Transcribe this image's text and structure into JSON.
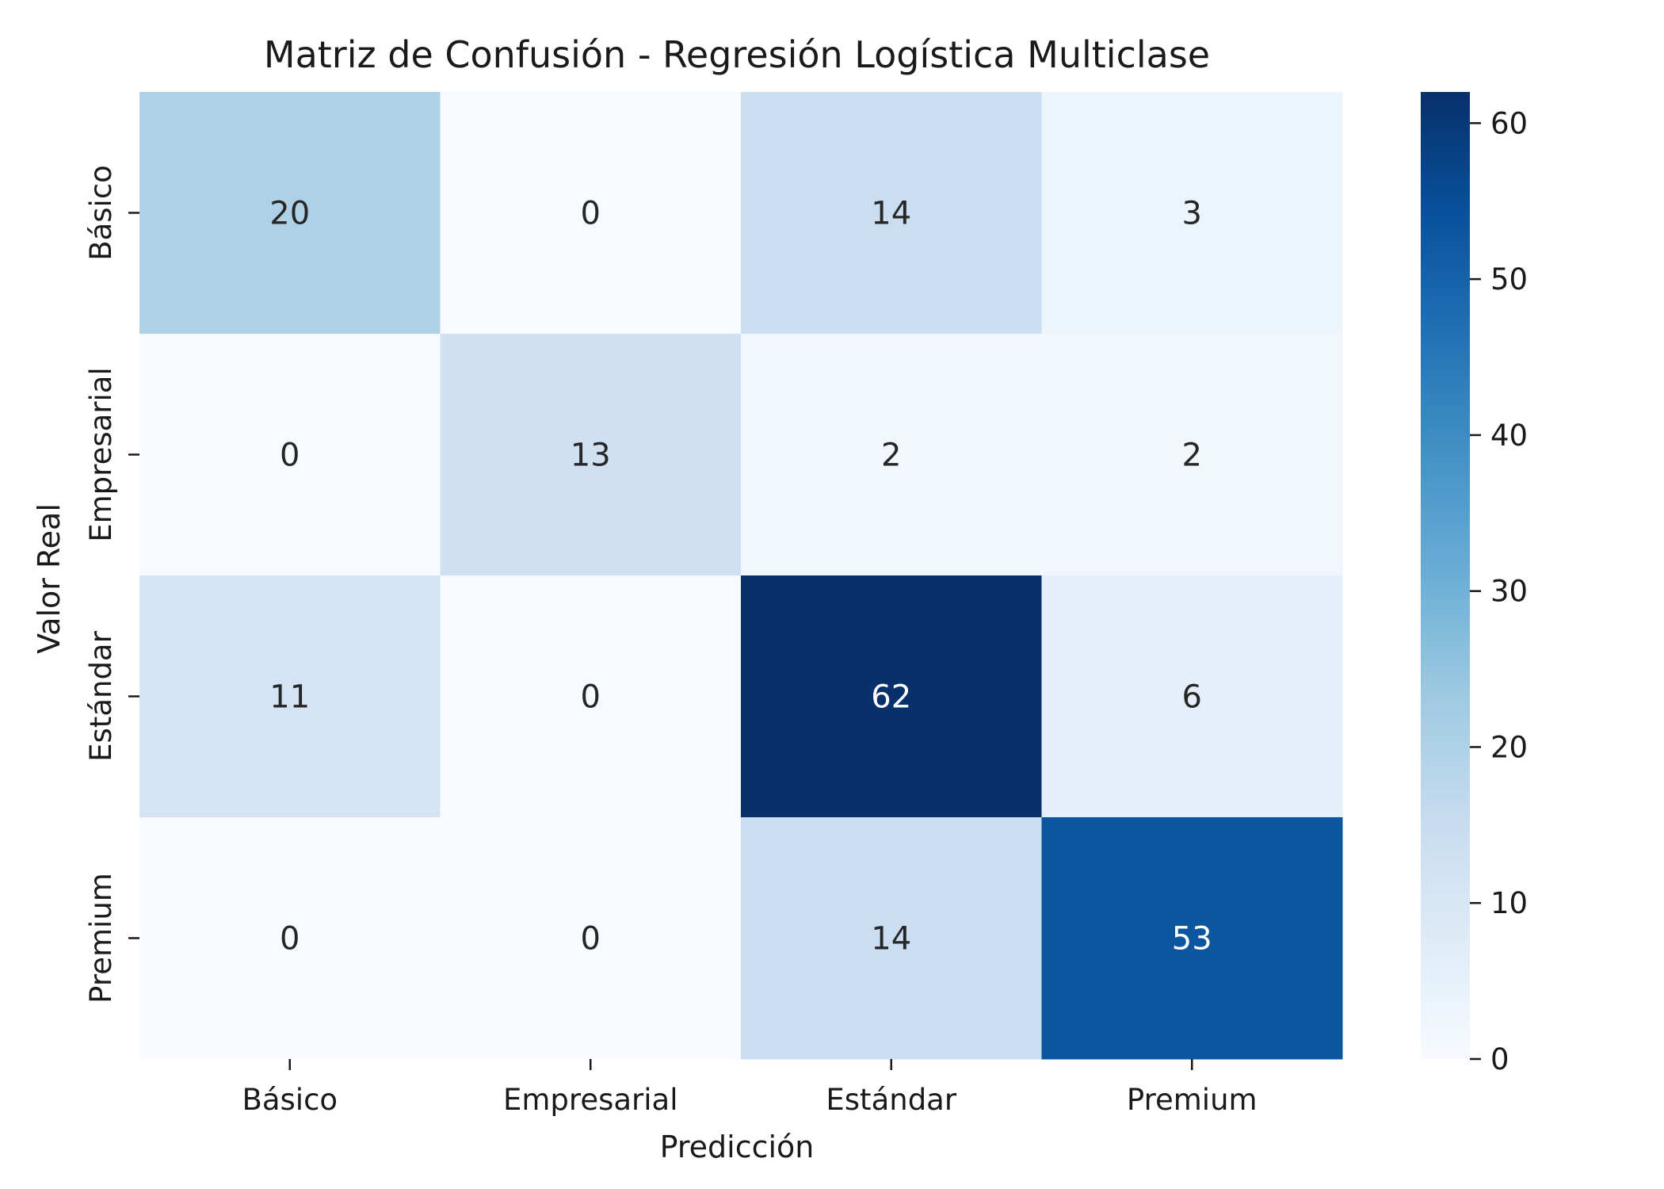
{
  "chart_data": {
    "type": "heatmap",
    "title": "Matriz de Confusión - Regresión Logística Multiclase",
    "xlabel": "Predicción",
    "ylabel": "Valor Real",
    "x_categories": [
      "Básico",
      "Empresarial",
      "Estándar",
      "Premium"
    ],
    "y_categories": [
      "Básico",
      "Empresarial",
      "Estándar",
      "Premium"
    ],
    "values": [
      [
        20,
        0,
        14,
        3
      ],
      [
        0,
        13,
        2,
        2
      ],
      [
        11,
        0,
        62,
        6
      ],
      [
        0,
        0,
        14,
        53
      ]
    ],
    "colorbar": {
      "min": 0,
      "max": 62,
      "ticks": [
        0,
        10,
        20,
        30,
        40,
        50,
        60
      ],
      "colormap": "Blues",
      "placement": "right"
    },
    "grid": false
  }
}
